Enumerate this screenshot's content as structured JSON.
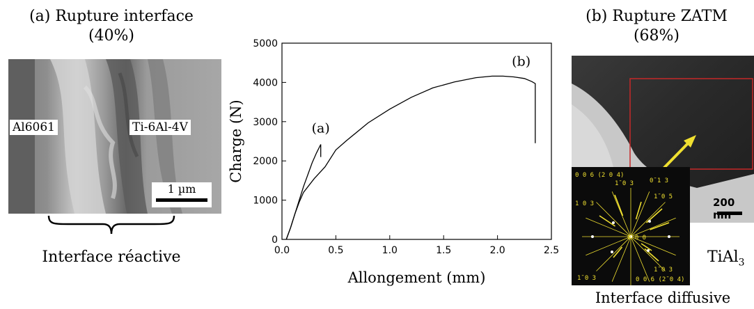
{
  "panel_a": {
    "title_line1": "(a) Rupture interface",
    "title_line2": "(40%)",
    "label_left": "Al6061",
    "label_right": "Ti-6Al-4V",
    "scale_bar": "1 µm",
    "bottom_caption": "Interface réactive"
  },
  "panel_b": {
    "title_line1": "(b) Rupture ZATM",
    "title_line2": "(68%)",
    "scale_bar": "200 nm",
    "phase_label": "TiAl",
    "phase_subscript": "3",
    "bottom_caption": "Interface diffusive",
    "diffraction_labels": [
      "0 0 6 (2 0 4)",
      "1̄ 0 3",
      "0̄ 1 3",
      "1 0 3",
      "1̄ 0 5",
      "0 0 0",
      "1̄ 0 3",
      "1̄ 0 3",
      "0 0 6  (2̄ 0 4)"
    ],
    "colors": {
      "annotation": "#f0e030",
      "roi_box": "#c62828"
    }
  },
  "chart_data": {
    "type": "line",
    "xlabel": "Allongement (mm)",
    "ylabel": "Charge (N)",
    "xlim": [
      0,
      2.5
    ],
    "ylim": [
      0,
      5000
    ],
    "xticks": [
      0.0,
      0.5,
      1.0,
      1.5,
      2.0,
      2.5
    ],
    "xtick_labels": [
      "0.0",
      "0.5",
      "1.0",
      "1.5",
      "2.0",
      "2.5"
    ],
    "yticks": [
      0,
      1000,
      2000,
      3000,
      4000,
      5000
    ],
    "ytick_labels": [
      "0",
      "1000",
      "2000",
      "3000",
      "4000",
      "5000"
    ],
    "grid": false,
    "series": [
      {
        "label": "(a)",
        "x": [
          0.04,
          0.08,
          0.12,
          0.16,
          0.2,
          0.24,
          0.28,
          0.32,
          0.36,
          0.36
        ],
        "y": [
          0,
          300,
          650,
          1000,
          1350,
          1650,
          1950,
          2200,
          2420,
          2100
        ]
      },
      {
        "label": "(b)",
        "x": [
          0.04,
          0.08,
          0.12,
          0.16,
          0.2,
          0.3,
          0.4,
          0.5,
          0.6,
          0.8,
          1.0,
          1.2,
          1.4,
          1.6,
          1.8,
          1.95,
          2.05,
          2.15,
          2.25,
          2.32,
          2.35,
          2.35
        ],
        "y": [
          0,
          300,
          650,
          950,
          1200,
          1550,
          1850,
          2280,
          2520,
          2970,
          3320,
          3620,
          3860,
          4010,
          4120,
          4160,
          4160,
          4140,
          4100,
          4020,
          3970,
          2450
        ]
      }
    ],
    "annotations": [
      {
        "text": "(a)",
        "x": 0.36,
        "y": 2720
      },
      {
        "text": "(b)",
        "x": 2.22,
        "y": 4420
      }
    ]
  }
}
